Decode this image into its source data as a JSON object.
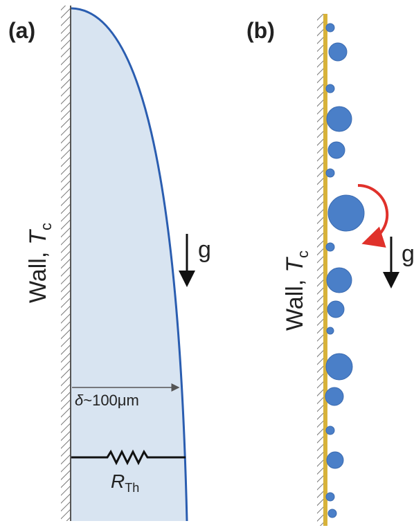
{
  "panels": [
    {
      "label": "(a)",
      "wall_label": {
        "text": "Wall,",
        "symbol": "T",
        "subscript": "c"
      },
      "gravity": "g",
      "thickness": {
        "symbol": "δ",
        "text": "~100μm"
      },
      "resistance": {
        "symbol": "R",
        "subscript": "Th"
      }
    },
    {
      "label": "(b)",
      "wall_label": {
        "text": "Wall,",
        "symbol": "T",
        "subscript": "c"
      },
      "gravity": "g"
    }
  ]
}
